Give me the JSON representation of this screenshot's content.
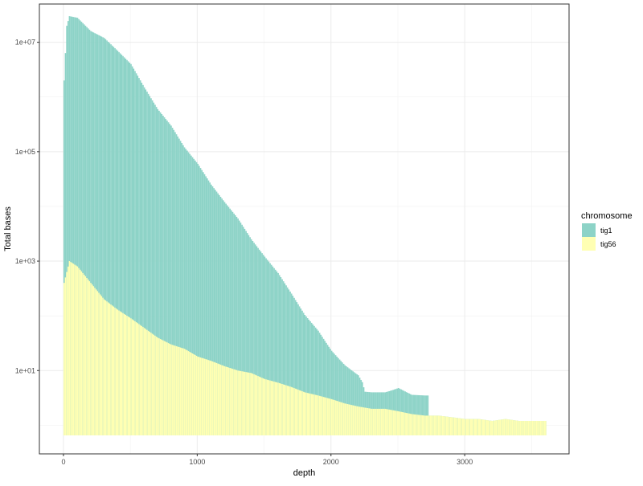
{
  "chart_data": {
    "type": "bar",
    "subtype": "stacked-histogram",
    "xlabel": "depth",
    "ylabel": "Total bases",
    "x_ticks": [
      0,
      1000,
      2000,
      3000
    ],
    "x_tick_labels": [
      "0",
      "1000",
      "2000",
      "3000"
    ],
    "xlim": [
      -180,
      3780
    ],
    "y_scale": "log10",
    "y_ticks": [
      10,
      1000,
      100000,
      10000000
    ],
    "y_tick_labels": [
      "1e+01",
      "1e+03",
      "1e+05",
      "1e+07"
    ],
    "ylim": [
      0.3,
      50000000
    ],
    "grid": true,
    "legend": {
      "title": "chromosome",
      "position": "right"
    },
    "bin_width": 10,
    "series": [
      {
        "name": "tig56",
        "color": "#ffffb3",
        "points": [
          [
            0,
            400
          ],
          [
            40,
            1000
          ],
          [
            100,
            800
          ],
          [
            200,
            400
          ],
          [
            300,
            200
          ],
          [
            400,
            130
          ],
          [
            500,
            90
          ],
          [
            600,
            60
          ],
          [
            700,
            40
          ],
          [
            800,
            30
          ],
          [
            900,
            25
          ],
          [
            1000,
            18
          ],
          [
            1100,
            15
          ],
          [
            1200,
            12
          ],
          [
            1300,
            10
          ],
          [
            1400,
            9
          ],
          [
            1500,
            7
          ],
          [
            1600,
            6
          ],
          [
            1700,
            5
          ],
          [
            1800,
            4
          ],
          [
            1900,
            3.5
          ],
          [
            2000,
            3
          ],
          [
            2100,
            2.5
          ],
          [
            2200,
            2.2
          ],
          [
            2300,
            2
          ],
          [
            2400,
            2
          ],
          [
            2500,
            1.8
          ],
          [
            2600,
            1.6
          ],
          [
            2700,
            1.5
          ],
          [
            2800,
            1.5
          ],
          [
            2900,
            1.4
          ],
          [
            3000,
            1.3
          ],
          [
            3100,
            1.3
          ],
          [
            3200,
            1.2
          ],
          [
            3300,
            1.3
          ],
          [
            3400,
            1.2
          ],
          [
            3450,
            1.2
          ],
          [
            3600,
            1.2
          ]
        ]
      },
      {
        "name": "tig1",
        "color": "#8dd3c7",
        "points": [
          [
            0,
            2000000
          ],
          [
            20,
            20000000
          ],
          [
            40,
            30000000
          ],
          [
            100,
            28000000
          ],
          [
            200,
            16000000
          ],
          [
            300,
            12000000
          ],
          [
            400,
            7000000
          ],
          [
            500,
            4000000
          ],
          [
            600,
            1500000
          ],
          [
            700,
            600000
          ],
          [
            800,
            300000
          ],
          [
            900,
            120000
          ],
          [
            1000,
            60000
          ],
          [
            1100,
            25000
          ],
          [
            1200,
            12000
          ],
          [
            1300,
            6000
          ],
          [
            1400,
            2500
          ],
          [
            1500,
            1200
          ],
          [
            1600,
            600
          ],
          [
            1700,
            250
          ],
          [
            1800,
            100
          ],
          [
            1900,
            50
          ],
          [
            2000,
            20
          ],
          [
            2100,
            10
          ],
          [
            2200,
            6
          ],
          [
            2230,
            4
          ],
          [
            2250,
            2
          ],
          [
            2300,
            2
          ],
          [
            2400,
            2
          ],
          [
            2500,
            3
          ],
          [
            2600,
            2
          ],
          [
            2700,
            2
          ],
          [
            2730,
            0
          ]
        ]
      }
    ]
  }
}
